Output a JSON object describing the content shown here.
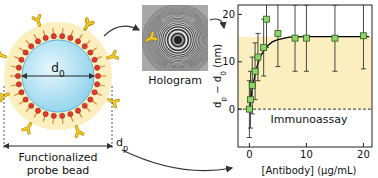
{
  "diagram": {
    "bead": {
      "core_label": [
        [
          "d",
          false
        ],
        [
          "0",
          true
        ]
      ],
      "outer_label": [
        [
          "d",
          false
        ],
        [
          "p",
          true
        ]
      ],
      "caption": [
        "Functionalized",
        "probe bead"
      ]
    },
    "hologram": {
      "caption": "Hologram"
    }
  },
  "chart_data": {
    "type": "scatter",
    "x_label": "[Antibody] (μg/mL)",
    "y_label": [
      [
        "d",
        false
      ],
      [
        "p",
        true
      ],
      [
        " − d",
        false
      ],
      [
        "0",
        true
      ],
      [
        " (nm)",
        false
      ]
    ],
    "annotation": "Immunoassay",
    "xlim": [
      -2,
      21.5
    ],
    "ylim": [
      -8,
      22
    ],
    "xticks": [
      0,
      10,
      20
    ],
    "yticks": [
      0,
      10,
      20
    ],
    "shaded_range": [
      0,
      15.3
    ],
    "series": [
      {
        "type": "scatter",
        "marker": "square",
        "color": "#8ed36a",
        "x": [
          0,
          0.2,
          0.5,
          1,
          1.5,
          2.5,
          3,
          5,
          8,
          10,
          15,
          20
        ],
        "values": [
          0,
          2,
          5,
          8,
          11,
          13,
          19,
          16,
          15,
          15,
          15,
          15.5
        ],
        "errors": [
          6,
          6,
          6,
          6,
          5,
          6,
          6,
          7,
          7,
          7,
          7,
          7
        ]
      },
      {
        "type": "line",
        "line_style": "solid",
        "color": "#000000",
        "x": [
          0,
          0.5,
          1,
          1.5,
          2,
          3,
          4,
          5,
          7,
          10,
          15,
          21
        ],
        "values": [
          0,
          4.3,
          7.4,
          9.7,
          11.3,
          13.2,
          14.2,
          14.7,
          15.2,
          15.3,
          15.3,
          15.3
        ]
      }
    ]
  }
}
